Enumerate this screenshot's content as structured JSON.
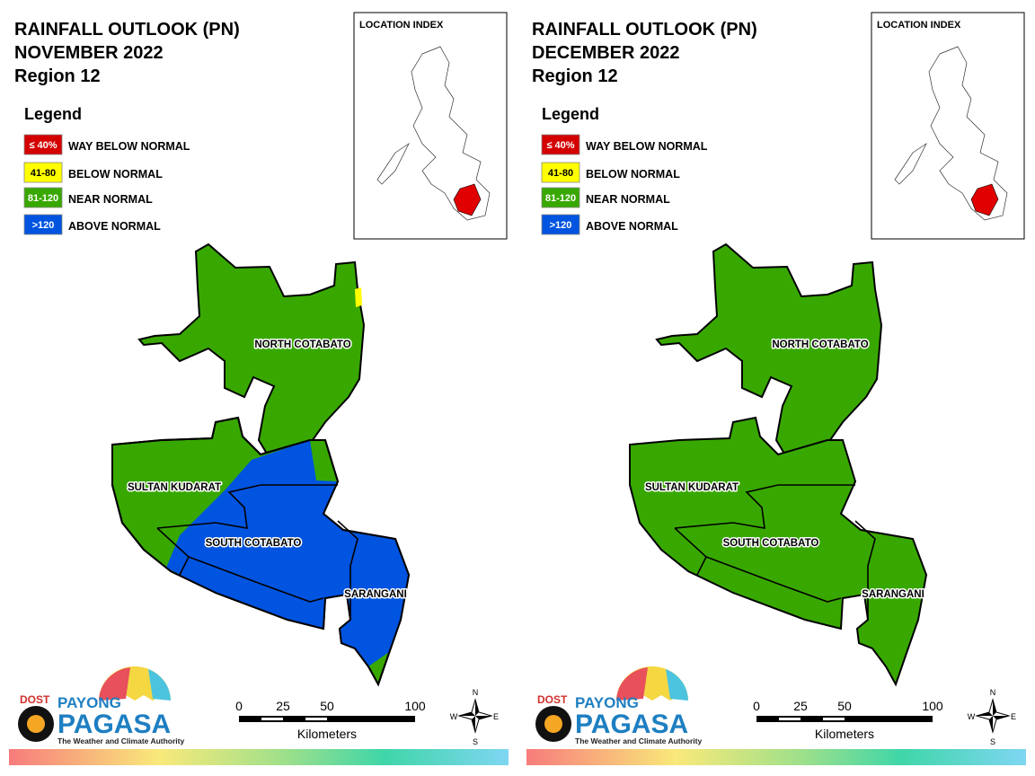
{
  "panels": [
    {
      "title_lines": [
        "RAINFALL OUTLOOK (PN)",
        "NOVEMBER 2022",
        "Region 12"
      ],
      "legend_title": "Legend",
      "legend": [
        {
          "label": "≤ 40%",
          "description": "WAY BELOW NORMAL",
          "color": "#d40000"
        },
        {
          "label": "41-80",
          "description": "BELOW NORMAL",
          "color": "#ffff00"
        },
        {
          "label": "81-120",
          "description": "NEAR NORMAL",
          "color": "#38a800"
        },
        {
          "label": ">120",
          "description": "ABOVE NORMAL",
          "color": "#0054e0"
        }
      ],
      "location_index": "LOCATION INDEX",
      "regions": [
        "NORTH COTABATO",
        "SULTAN KUDARAT",
        "SOUTH COTABATO",
        "SARANGANI"
      ],
      "logo": {
        "dost": "DOST",
        "payong": "PAYONG",
        "pagasa": "PAGASA",
        "tagline": "The Weather and Climate Authority"
      },
      "scale": {
        "ticks": [
          0,
          25,
          50,
          100
        ],
        "unit": "Kilometers"
      },
      "compass": {
        "n": "N",
        "e": "E",
        "s": "S",
        "w": "W"
      }
    },
    {
      "title_lines": [
        "RAINFALL OUTLOOK (PN)",
        "DECEMBER 2022",
        "Region 12"
      ],
      "legend_title": "Legend",
      "legend": [
        {
          "label": "≤ 40%",
          "description": "WAY BELOW NORMAL",
          "color": "#d40000"
        },
        {
          "label": "41-80",
          "description": "BELOW NORMAL",
          "color": "#ffff00"
        },
        {
          "label": "81-120",
          "description": "NEAR NORMAL",
          "color": "#38a800"
        },
        {
          "label": ">120",
          "description": "ABOVE NORMAL",
          "color": "#0054e0"
        }
      ],
      "location_index": "LOCATION INDEX",
      "regions": [
        "NORTH COTABATO",
        "SULTAN KUDARAT",
        "SOUTH COTABATO",
        "SARANGANI"
      ],
      "logo": {
        "dost": "DOST",
        "payong": "PAYONG",
        "pagasa": "PAGASA",
        "tagline": "The Weather and Climate Authority"
      },
      "scale": {
        "ticks": [
          0,
          25,
          50,
          100
        ],
        "unit": "Kilometers"
      },
      "compass": {
        "n": "N",
        "e": "E",
        "s": "S",
        "w": "W"
      }
    }
  ]
}
